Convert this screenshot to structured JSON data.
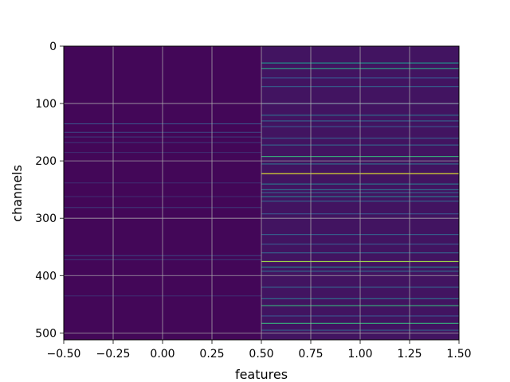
{
  "chart_data": {
    "type": "heatmap",
    "xlabel": "features",
    "ylabel": "channels",
    "xlim": [
      -0.5,
      1.5
    ],
    "ylim": [
      512,
      0
    ],
    "y_inverted": true,
    "colormap": "viridis",
    "grid": true,
    "x_ticks": [
      "−0.50",
      "−0.25",
      "0.00",
      "0.25",
      "0.50",
      "0.75",
      "1.00",
      "1.25",
      "1.50"
    ],
    "x_tick_values": [
      -0.5,
      -0.25,
      0.0,
      0.25,
      0.5,
      0.75,
      1.0,
      1.25,
      1.5
    ],
    "y_ticks": [
      "0",
      "100",
      "200",
      "300",
      "400",
      "500"
    ],
    "y_tick_values": [
      0,
      100,
      200,
      300,
      400,
      500
    ],
    "columns": [
      {
        "feature": 0,
        "base_value": 0.02,
        "rows": [
          {
            "channel": 135,
            "value": 0.22
          },
          {
            "channel": 150,
            "value": 0.18
          },
          {
            "channel": 158,
            "value": 0.15
          },
          {
            "channel": 168,
            "value": 0.14
          },
          {
            "channel": 185,
            "value": 0.12
          },
          {
            "channel": 238,
            "value": 0.12
          },
          {
            "channel": 262,
            "value": 0.12
          },
          {
            "channel": 281,
            "value": 0.15
          },
          {
            "channel": 365,
            "value": 0.18
          },
          {
            "channel": 372,
            "value": 0.15
          },
          {
            "channel": 435,
            "value": 0.12
          }
        ]
      },
      {
        "feature": 1,
        "base_value": 0.06,
        "rows": [
          {
            "channel": 29,
            "value": 0.5
          },
          {
            "channel": 39,
            "value": 0.55
          },
          {
            "channel": 55,
            "value": 0.25
          },
          {
            "channel": 70,
            "value": 0.3
          },
          {
            "channel": 100,
            "value": 0.22
          },
          {
            "channel": 120,
            "value": 0.35
          },
          {
            "channel": 130,
            "value": 0.3
          },
          {
            "channel": 140,
            "value": 0.25
          },
          {
            "channel": 160,
            "value": 0.28
          },
          {
            "channel": 172,
            "value": 0.32
          },
          {
            "channel": 192,
            "value": 0.6
          },
          {
            "channel": 205,
            "value": 0.35
          },
          {
            "channel": 222,
            "value": 0.95
          },
          {
            "channel": 240,
            "value": 0.4
          },
          {
            "channel": 250,
            "value": 0.35
          },
          {
            "channel": 255,
            "value": 0.3
          },
          {
            "channel": 262,
            "value": 0.4
          },
          {
            "channel": 270,
            "value": 0.3
          },
          {
            "channel": 292,
            "value": 0.25
          },
          {
            "channel": 328,
            "value": 0.3
          },
          {
            "channel": 345,
            "value": 0.25
          },
          {
            "channel": 360,
            "value": 0.3
          },
          {
            "channel": 375,
            "value": 0.85
          },
          {
            "channel": 385,
            "value": 0.45
          },
          {
            "channel": 392,
            "value": 0.35
          },
          {
            "channel": 420,
            "value": 0.3
          },
          {
            "channel": 440,
            "value": 0.35
          },
          {
            "channel": 452,
            "value": 0.6
          },
          {
            "channel": 470,
            "value": 0.25
          },
          {
            "channel": 483,
            "value": 0.6
          },
          {
            "channel": 495,
            "value": 0.3
          }
        ]
      }
    ]
  }
}
